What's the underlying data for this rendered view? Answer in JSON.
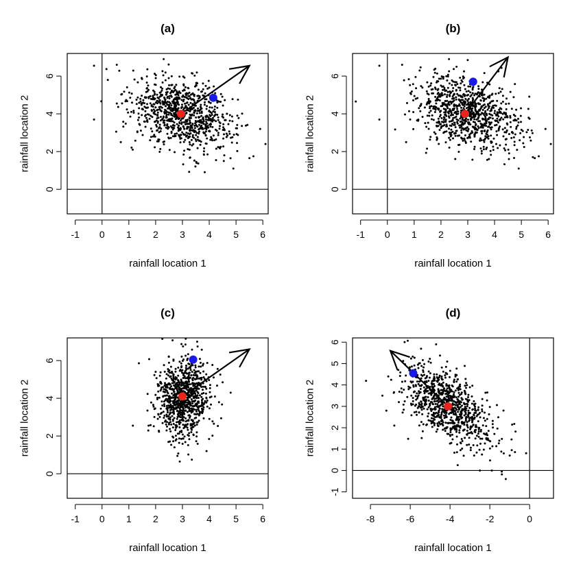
{
  "chart_data": [
    {
      "type": "scatter",
      "title": "(a)",
      "xlabel": "rainfall location 1",
      "ylabel": "rainfall location 2",
      "xlim": [
        -1.3,
        6.2
      ],
      "ylim": [
        -1.3,
        7.2
      ],
      "xticks": [
        -1,
        0,
        1,
        2,
        3,
        4,
        5,
        6
      ],
      "yticks": [
        0,
        2,
        4,
        6
      ],
      "n_points": 900,
      "mean": [
        3.0,
        4.0
      ],
      "sd": [
        0.95,
        0.95
      ],
      "corr": -0.35,
      "grid": false,
      "ref_lines": {
        "x": 0,
        "y": 0
      },
      "center_point": {
        "x": 2.95,
        "y": 4.0,
        "color": "#e8261c"
      },
      "highlight_point": {
        "x": 4.15,
        "y": 4.85,
        "color": "#1a1ae6"
      },
      "arrow": {
        "from": [
          2.95,
          4.0
        ],
        "to": [
          5.5,
          6.55
        ]
      },
      "outliers": [
        [
          -0.3,
          6.55
        ],
        [
          -0.3,
          3.7
        ],
        [
          0.55,
          6.6
        ],
        [
          0.7,
          2.5
        ],
        [
          2.3,
          6.9
        ],
        [
          5.5,
          1.65
        ],
        [
          5.65,
          1.75
        ],
        [
          5.9,
          3.2
        ],
        [
          6.1,
          2.4
        ],
        [
          4.9,
          1.1
        ]
      ]
    },
    {
      "type": "scatter",
      "title": "(b)",
      "xlabel": "rainfall location 1",
      "ylabel": "rainfall location 2",
      "xlim": [
        -1.3,
        6.2
      ],
      "ylim": [
        -1.3,
        7.2
      ],
      "xticks": [
        -1,
        0,
        1,
        2,
        3,
        4,
        5,
        6
      ],
      "yticks": [
        0,
        2,
        4,
        6
      ],
      "n_points": 900,
      "mean": [
        3.0,
        4.0
      ],
      "sd": [
        0.95,
        0.95
      ],
      "corr": -0.35,
      "grid": false,
      "ref_lines": {
        "x": 0,
        "y": 0
      },
      "center_point": {
        "x": 2.9,
        "y": 4.0,
        "color": "#e8261c"
      },
      "highlight_point": {
        "x": 3.2,
        "y": 5.7,
        "color": "#1a1ae6"
      },
      "arrow": {
        "from": [
          2.9,
          4.0
        ],
        "to": [
          4.5,
          7.0
        ]
      },
      "outliers": [
        [
          -0.3,
          6.55
        ],
        [
          -0.3,
          3.7
        ],
        [
          0.55,
          6.6
        ],
        [
          0.7,
          2.5
        ],
        [
          2.3,
          6.9
        ],
        [
          5.5,
          1.65
        ],
        [
          5.65,
          1.75
        ],
        [
          5.9,
          3.2
        ],
        [
          6.1,
          2.4
        ],
        [
          4.9,
          1.1
        ]
      ]
    },
    {
      "type": "scatter",
      "title": "(c)",
      "xlabel": "rainfall location 1",
      "ylabel": "rainfall location 2",
      "xlim": [
        -1.3,
        6.2
      ],
      "ylim": [
        -1.3,
        7.2
      ],
      "xticks": [
        -1,
        0,
        1,
        2,
        3,
        4,
        5,
        6
      ],
      "yticks": [
        0,
        2,
        4,
        6
      ],
      "n_points": 900,
      "mean": [
        3.0,
        4.0
      ],
      "sd": [
        0.5,
        1.05
      ],
      "corr": 0.0,
      "grid": false,
      "ref_lines": {
        "x": 0,
        "y": 0
      },
      "center_point": {
        "x": 3.0,
        "y": 4.1,
        "color": "#e8261c"
      },
      "highlight_point": {
        "x": 3.4,
        "y": 6.05,
        "color": "#1a1ae6"
      },
      "arrow": {
        "from": [
          3.0,
          4.1
        ],
        "to": [
          5.5,
          6.6
        ]
      },
      "outliers": [
        [
          1.15,
          2.55
        ],
        [
          2.25,
          7.15
        ],
        [
          2.9,
          0.65
        ],
        [
          3.35,
          0.75
        ],
        [
          3.55,
          7.0
        ],
        [
          4.5,
          4.85
        ],
        [
          4.8,
          4.3
        ],
        [
          2.0,
          5.4
        ],
        [
          3.9,
          1.2
        ]
      ]
    },
    {
      "type": "scatter",
      "title": "(d)",
      "xlabel": "rainfall location 1",
      "ylabel": "rainfall location 2",
      "xlim": [
        -8.9,
        1.2
      ],
      "ylim": [
        -1.3,
        6.2
      ],
      "xticks": [
        -8,
        -6,
        -4,
        -2,
        0
      ],
      "yticks": [
        -1,
        0,
        1,
        2,
        3,
        4,
        5,
        6
      ],
      "n_points": 900,
      "mean": [
        -4.1,
        3.0
      ],
      "sd": [
        1.1,
        0.95
      ],
      "corr": -0.55,
      "grid": false,
      "ref_lines": {
        "x": 0,
        "y": 0
      },
      "center_point": {
        "x": -4.1,
        "y": 3.0,
        "color": "#e8261c"
      },
      "highlight_point": {
        "x": -5.85,
        "y": 4.55,
        "color": "#1a1ae6"
      },
      "arrow": {
        "from": [
          -4.1,
          3.0
        ],
        "to": [
          -7.0,
          5.6
        ]
      },
      "outliers": [
        [
          -7.4,
          3.5
        ],
        [
          -7.2,
          2.8
        ],
        [
          -6.8,
          2.1
        ],
        [
          -4.7,
          5.9
        ],
        [
          -2.5,
          0.0
        ],
        [
          -1.9,
          0.0
        ],
        [
          -1.4,
          -0.05
        ],
        [
          -1.2,
          -0.4
        ],
        [
          -1.0,
          0.7
        ],
        [
          -0.9,
          0.95
        ],
        [
          -1.3,
          0.8
        ]
      ]
    }
  ]
}
